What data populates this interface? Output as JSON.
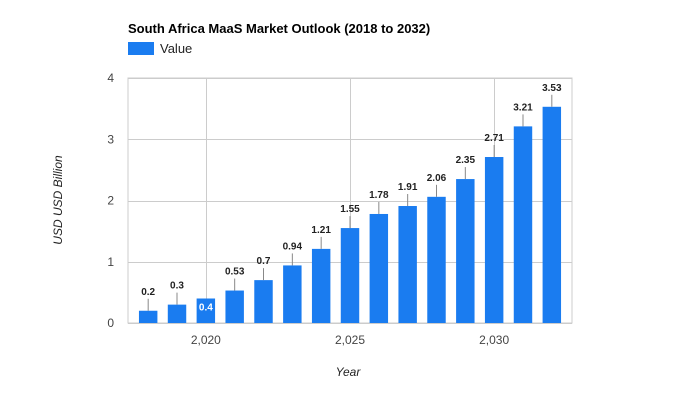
{
  "chart_data": {
    "type": "bar",
    "title": "South Africa MaaS Market Outlook (2018 to 2032)",
    "xlabel": "Year",
    "ylabel": "USD USD Billion",
    "legend": {
      "position": "top-left",
      "entries": [
        "Value"
      ]
    },
    "color": "#1a7cf0",
    "grid": true,
    "ylim": [
      0,
      4
    ],
    "yticks": [
      0,
      1,
      2,
      3,
      4
    ],
    "xlim": [
      2017.3,
      2032.7
    ],
    "xticks": [
      2020,
      2025,
      2030
    ],
    "xtick_labels": [
      "2,020",
      "2,025",
      "2,030"
    ],
    "series": [
      {
        "name": "Value",
        "x": [
          2018,
          2019,
          2020,
          2021,
          2022,
          2023,
          2024,
          2025,
          2026,
          2027,
          2028,
          2029,
          2030,
          2031,
          2032
        ],
        "values": [
          0.2,
          0.3,
          0.4,
          0.53,
          0.7,
          0.94,
          1.21,
          1.55,
          1.78,
          1.91,
          2.06,
          2.35,
          2.71,
          3.21,
          3.53
        ],
        "labels": [
          "0.2",
          "0.3",
          "0.4",
          "0.53",
          "0.7",
          "0.94",
          "1.21",
          "1.55",
          "1.78",
          "1.91",
          "2.06",
          "2.35",
          "2.71",
          "3.21",
          "3.53"
        ]
      }
    ]
  }
}
